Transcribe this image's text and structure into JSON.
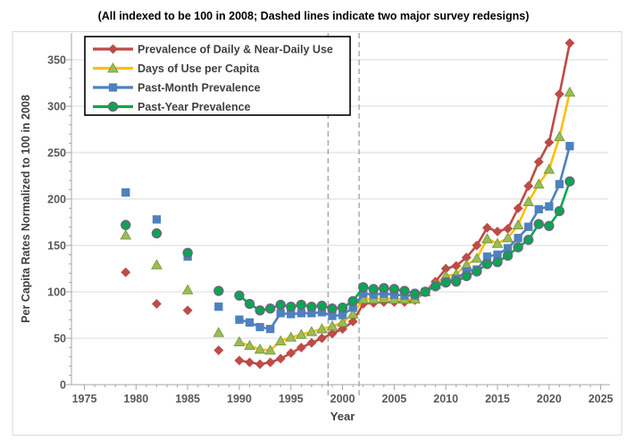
{
  "title": "(All indexed to be 100 in 2008; Dashed lines indicate two major survey redesigns)",
  "chart_data": {
    "type": "line",
    "title": "(All indexed to be 100 in 2008; Dashed lines indicate two major survey redesigns)",
    "xlabel": "Year",
    "ylabel": "Per Capita Rates Normalized to 100 in 2008",
    "xlim": [
      1973.8,
      2026.3
    ],
    "ylim": [
      0,
      352
    ],
    "x_ticks": [
      1975,
      1980,
      1985,
      1990,
      1995,
      2000,
      2005,
      2010,
      2015,
      2020,
      2025
    ],
    "y_ticks": [
      0,
      50,
      100,
      150,
      200,
      250,
      300,
      350
    ],
    "x_minor_step": 1,
    "y_minor_step": 10,
    "grid": "horizontal",
    "legend_position": "top-left-inside",
    "dashed_vlines": [
      1998.6,
      2001.6
    ],
    "dashed_vline_color": "#A6A6A6",
    "grid_color": "#D9D9D9",
    "axis_color": "#A6A6A6",
    "tick_label_color": "#595959",
    "axis_title_color": "#404040",
    "legend_text_color": "#3F3F3F",
    "isolated_until_year": 1989,
    "connected_from_year": 1990,
    "years": [
      1979,
      1982,
      1985,
      1988,
      1990,
      1991,
      1992,
      1993,
      1994,
      1995,
      1996,
      1997,
      1998,
      1999,
      2000,
      2001,
      2002,
      2003,
      2004,
      2005,
      2006,
      2007,
      2008,
      2009,
      2010,
      2011,
      2012,
      2013,
      2014,
      2015,
      2016,
      2017,
      2018,
      2019,
      2020,
      2021,
      2022
    ],
    "series": [
      {
        "name": "Prevalence of Daily & Near-Daily Use",
        "marker": "diamond",
        "line_color": "#BE4B48",
        "marker_fill": "#BE4B48",
        "marker_stroke": "#BE4B48",
        "values": [
          121,
          87,
          80,
          37,
          26,
          24,
          22,
          24,
          28,
          34,
          40,
          45,
          50,
          55,
          60,
          68,
          87,
          88,
          89,
          89,
          89,
          91,
          100,
          111,
          125,
          128,
          137,
          150,
          169,
          165,
          168,
          190,
          214,
          240,
          261,
          313,
          368
        ]
      },
      {
        "name": "Days of Use per Capita",
        "marker": "triangle",
        "line_color": "#FFC000",
        "marker_fill": "#9BBB59",
        "marker_stroke": "#7A9A3D",
        "values": [
          161,
          129,
          102,
          56,
          46,
          42,
          38,
          37,
          47,
          51,
          54,
          57,
          60,
          63,
          67,
          76,
          92,
          92,
          93,
          92,
          92,
          92,
          100,
          108,
          117,
          119,
          129,
          136,
          157,
          152,
          158,
          172,
          197,
          216,
          232,
          267,
          315
        ]
      },
      {
        "name": "Past-Month Prevalence",
        "marker": "square",
        "line_color": "#4F81BD",
        "marker_fill": "#4F81BD",
        "marker_stroke": "#4F81BD",
        "values": [
          207,
          178,
          138,
          84,
          70,
          67,
          62,
          60,
          77,
          76,
          77,
          77,
          78,
          74,
          75,
          83,
          98,
          97,
          98,
          97,
          96,
          96,
          100,
          107,
          111,
          114,
          122,
          124,
          138,
          140,
          147,
          158,
          170,
          189,
          192,
          216,
          257
        ]
      },
      {
        "name": "Past-Year Prevalence",
        "marker": "circle",
        "line_color": "#00A94F",
        "marker_fill": "#00A94F",
        "marker_stroke": "#6F6680",
        "values": [
          172,
          163,
          142,
          101,
          96,
          87,
          80,
          82,
          86,
          84,
          86,
          84,
          85,
          82,
          83,
          90,
          105,
          103,
          104,
          103,
          101,
          98,
          100,
          106,
          110,
          111,
          117,
          122,
          130,
          132,
          139,
          148,
          156,
          173,
          171,
          187,
          219
        ]
      }
    ]
  }
}
